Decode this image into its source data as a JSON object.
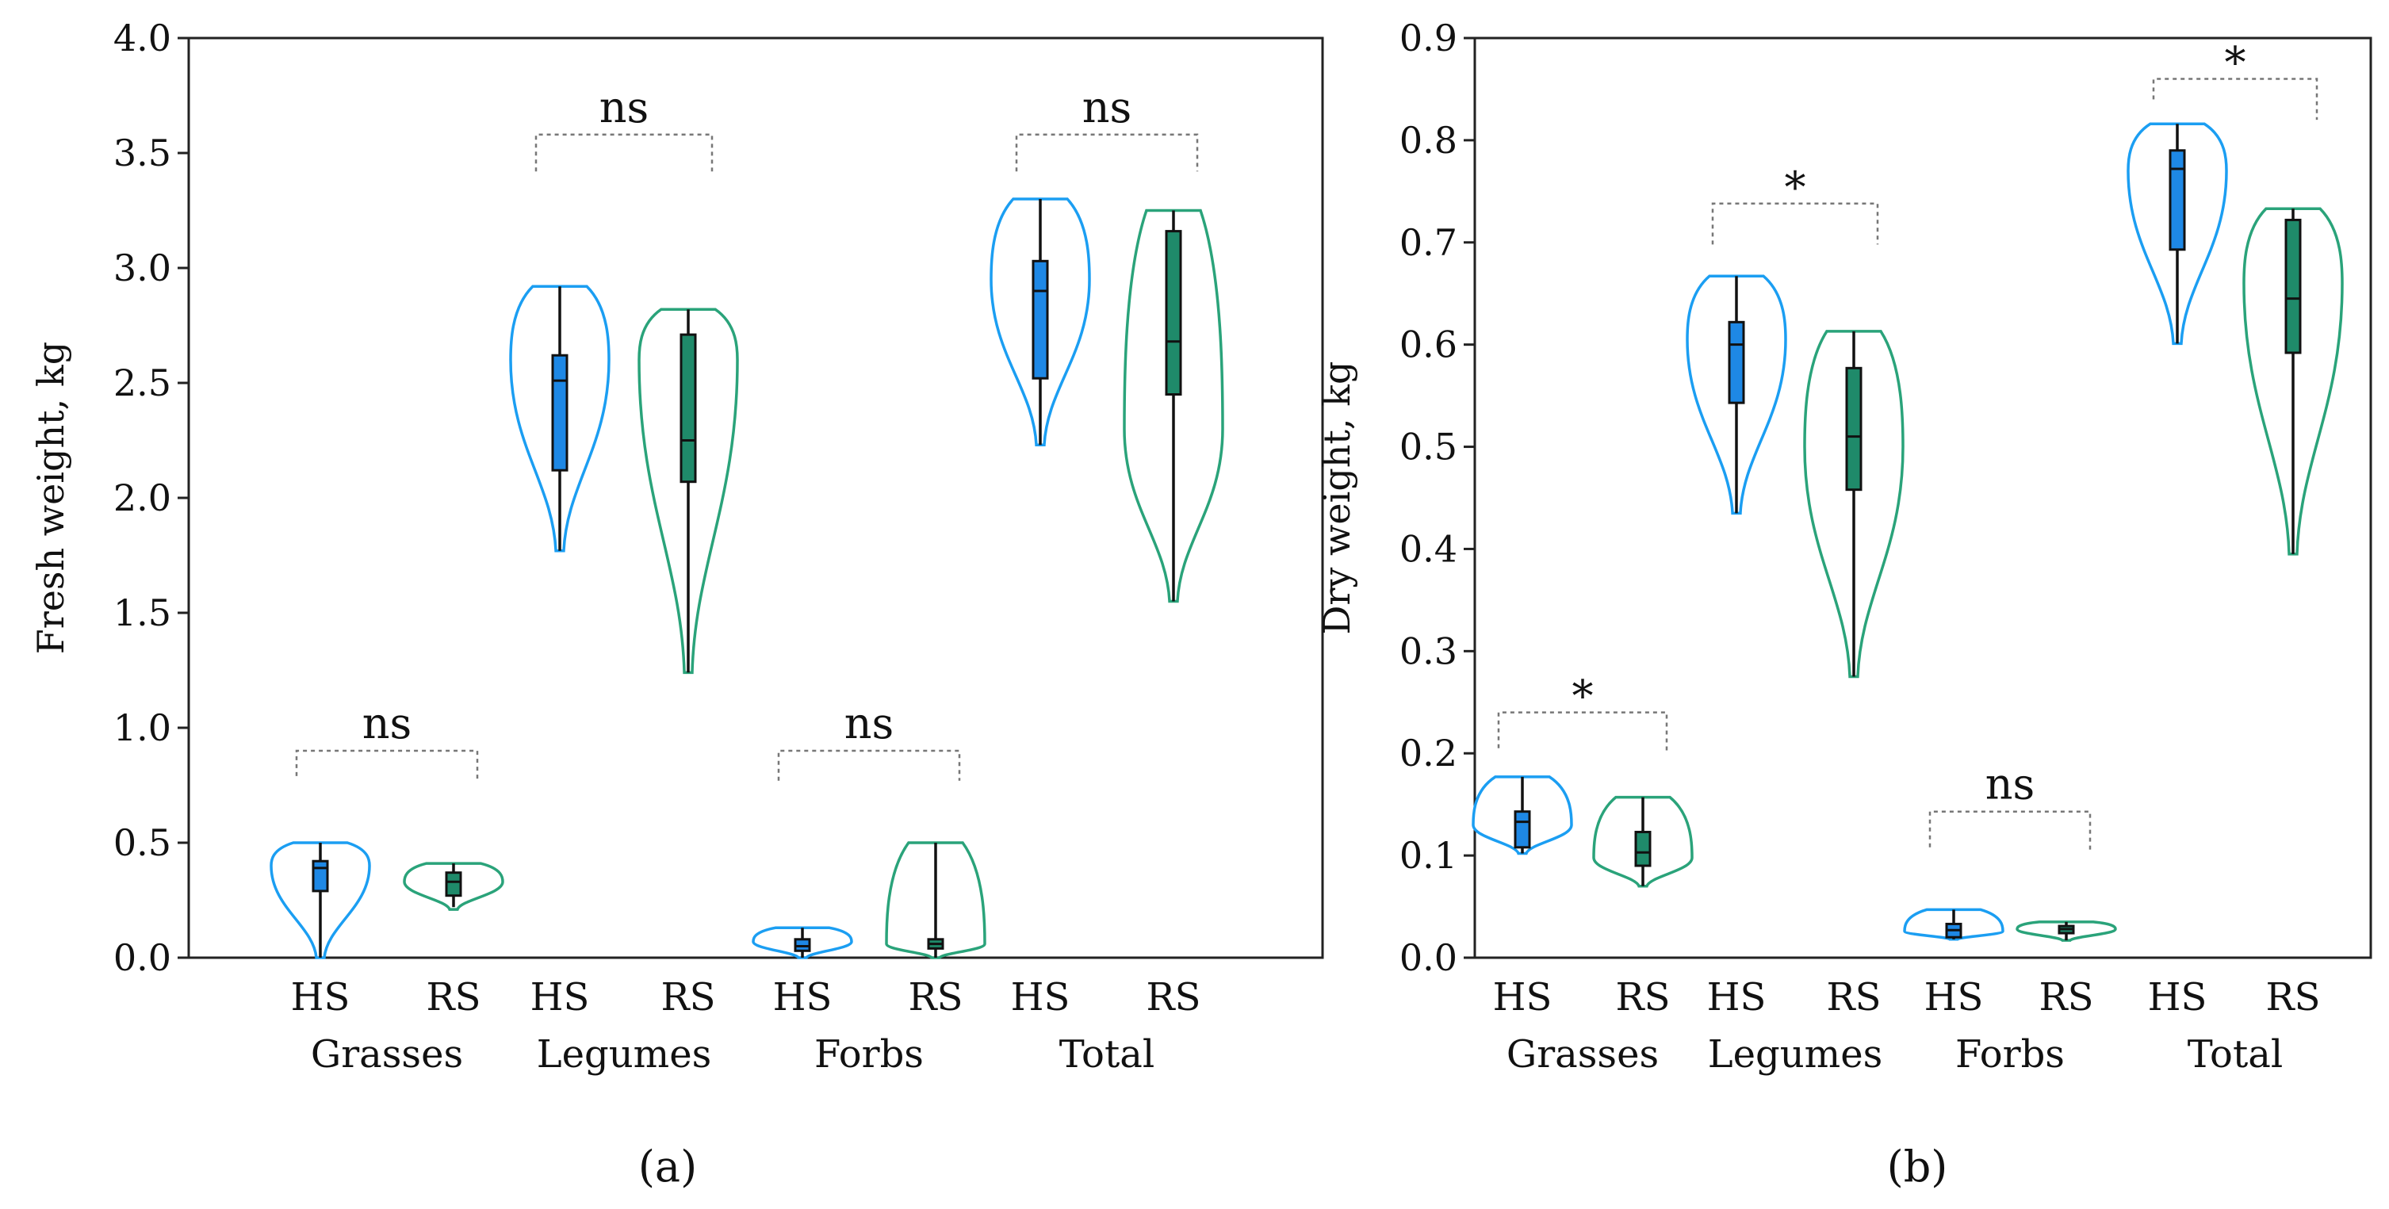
{
  "chart_data": [
    {
      "type": "violin",
      "panel_label": "(a)",
      "ylabel": "Fresh weight, kg",
      "ylim": [
        0,
        4.0
      ],
      "yticks": [
        "0.0",
        "0.5",
        "1.0",
        "1.5",
        "2.0",
        "2.5",
        "3.0",
        "3.5",
        "4.0"
      ],
      "ytick_values": [
        0,
        0.5,
        1.0,
        1.5,
        2.0,
        2.5,
        3.0,
        3.5,
        4.0
      ],
      "groups": [
        {
          "name": "Grasses",
          "significance": "ns",
          "bracket_top": 0.9,
          "bracket_left_end": 0.79,
          "bracket_right_end": 0.77,
          "series": [
            {
              "name": "HS",
              "violin_min": 0.0,
              "violin_max": 0.5,
              "violin_widest": 0.4,
              "whisker_low": 0.0,
              "whisker_high": 0.5,
              "q1": 0.29,
              "median": 0.39,
              "q3": 0.42
            },
            {
              "name": "RS",
              "violin_min": 0.21,
              "violin_max": 0.41,
              "violin_widest": 0.33,
              "whisker_low": 0.22,
              "whisker_high": 0.41,
              "q1": 0.27,
              "median": 0.33,
              "q3": 0.37
            }
          ]
        },
        {
          "name": "Legumes",
          "significance": "ns",
          "bracket_top": 3.58,
          "bracket_left_end": 3.42,
          "bracket_right_end": 3.42,
          "series": [
            {
              "name": "HS",
              "violin_min": 1.77,
              "violin_max": 2.92,
              "violin_widest": 2.6,
              "whisker_low": 1.77,
              "whisker_high": 2.92,
              "q1": 2.12,
              "median": 2.51,
              "q3": 2.62
            },
            {
              "name": "RS",
              "violin_min": 1.24,
              "violin_max": 2.82,
              "violin_widest": 2.6,
              "whisker_low": 1.24,
              "whisker_high": 2.82,
              "q1": 2.07,
              "median": 2.25,
              "q3": 2.71
            }
          ]
        },
        {
          "name": "Forbs",
          "significance": "ns",
          "bracket_top": 0.9,
          "bracket_left_end": 0.77,
          "bracket_right_end": 0.77,
          "series": [
            {
              "name": "HS",
              "violin_min": 0.0,
              "violin_max": 0.13,
              "violin_widest": 0.07,
              "whisker_low": 0.0,
              "whisker_high": 0.13,
              "q1": 0.03,
              "median": 0.05,
              "q3": 0.08
            },
            {
              "name": "RS",
              "violin_min": 0.0,
              "violin_max": 0.5,
              "violin_widest": 0.06,
              "whisker_low": 0.0,
              "whisker_high": 0.5,
              "q1": 0.04,
              "median": 0.06,
              "q3": 0.08
            }
          ]
        },
        {
          "name": "Total",
          "significance": "ns",
          "bracket_top": 3.58,
          "bracket_left_end": 3.42,
          "bracket_right_end": 3.42,
          "series": [
            {
              "name": "HS",
              "violin_min": 2.23,
              "violin_max": 3.3,
              "violin_widest": 2.95,
              "whisker_low": 2.23,
              "whisker_high": 3.3,
              "q1": 2.52,
              "median": 2.9,
              "q3": 3.03
            },
            {
              "name": "RS",
              "violin_min": 1.55,
              "violin_max": 3.25,
              "violin_widest": 2.3,
              "whisker_low": 1.55,
              "whisker_high": 3.25,
              "q1": 2.45,
              "median": 2.68,
              "q3": 3.16
            }
          ]
        }
      ]
    },
    {
      "type": "violin",
      "panel_label": "(b)",
      "ylabel": "Dry weight, kg",
      "ylim": [
        0,
        0.9
      ],
      "yticks": [
        "0.0",
        "0.1",
        "0.2",
        "0.3",
        "0.4",
        "0.5",
        "0.6",
        "0.7",
        "0.8",
        "0.9"
      ],
      "ytick_values": [
        0,
        0.1,
        0.2,
        0.3,
        0.4,
        0.5,
        0.6,
        0.7,
        0.8,
        0.9
      ],
      "groups": [
        {
          "name": "Grasses",
          "significance": "*",
          "bracket_top": 0.24,
          "bracket_left_end": 0.205,
          "bracket_right_end": 0.2,
          "series": [
            {
              "name": "HS",
              "violin_min": 0.102,
              "violin_max": 0.177,
              "violin_widest": 0.13,
              "whisker_low": 0.102,
              "whisker_high": 0.177,
              "q1": 0.108,
              "median": 0.133,
              "q3": 0.143
            },
            {
              "name": "RS",
              "violin_min": 0.07,
              "violin_max": 0.157,
              "violin_widest": 0.098,
              "whisker_low": 0.07,
              "whisker_high": 0.157,
              "q1": 0.09,
              "median": 0.103,
              "q3": 0.123
            }
          ]
        },
        {
          "name": "Legumes",
          "significance": "*",
          "bracket_top": 0.738,
          "bracket_left_end": 0.698,
          "bracket_right_end": 0.698,
          "series": [
            {
              "name": "HS",
              "violin_min": 0.435,
              "violin_max": 0.667,
              "violin_widest": 0.605,
              "whisker_low": 0.435,
              "whisker_high": 0.667,
              "q1": 0.543,
              "median": 0.6,
              "q3": 0.622
            },
            {
              "name": "RS",
              "violin_min": 0.275,
              "violin_max": 0.613,
              "violin_widest": 0.5,
              "whisker_low": 0.275,
              "whisker_high": 0.613,
              "q1": 0.458,
              "median": 0.51,
              "q3": 0.577
            }
          ]
        },
        {
          "name": "Forbs",
          "significance": "ns",
          "bracket_top": 0.143,
          "bracket_left_end": 0.108,
          "bracket_right_end": 0.105,
          "series": [
            {
              "name": "HS",
              "violin_min": 0.018,
              "violin_max": 0.047,
              "violin_widest": 0.026,
              "whisker_low": 0.018,
              "whisker_high": 0.047,
              "q1": 0.02,
              "median": 0.027,
              "q3": 0.033
            },
            {
              "name": "RS",
              "violin_min": 0.017,
              "violin_max": 0.035,
              "violin_widest": 0.028,
              "whisker_low": 0.017,
              "whisker_high": 0.035,
              "q1": 0.024,
              "median": 0.028,
              "q3": 0.031
            }
          ]
        },
        {
          "name": "Total",
          "significance": "*",
          "bracket_top": 0.86,
          "bracket_left_end": 0.84,
          "bracket_right_end": 0.82,
          "series": [
            {
              "name": "HS",
              "violin_min": 0.601,
              "violin_max": 0.816,
              "violin_widest": 0.77,
              "whisker_low": 0.601,
              "whisker_high": 0.816,
              "q1": 0.693,
              "median": 0.772,
              "q3": 0.79
            },
            {
              "name": "RS",
              "violin_min": 0.395,
              "violin_max": 0.733,
              "violin_widest": 0.66,
              "whisker_low": 0.395,
              "whisker_high": 0.733,
              "q1": 0.592,
              "median": 0.645,
              "q3": 0.722
            }
          ]
        }
      ]
    }
  ],
  "colors": {
    "HS": "#1b9ef2",
    "RS": "#2aa37a",
    "HS_box": "#1e88e5",
    "RS_box": "#1f8a6a"
  }
}
